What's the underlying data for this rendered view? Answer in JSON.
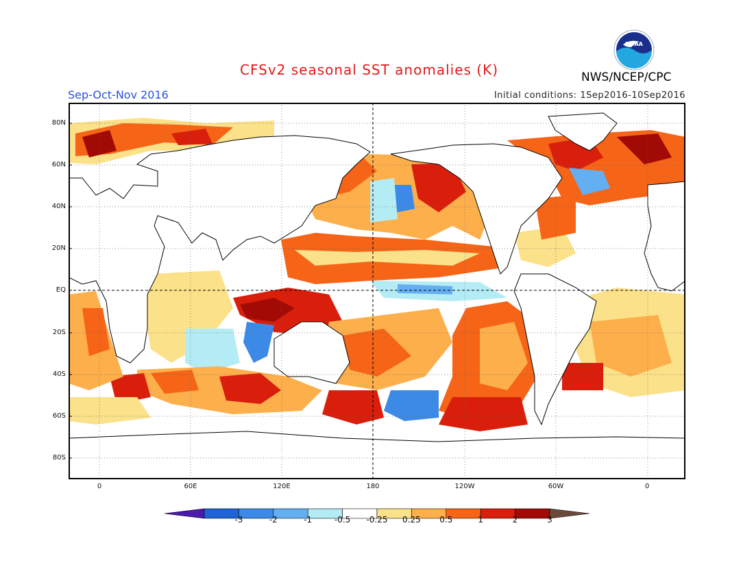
{
  "header": {
    "title": "CFSv2 seasonal SST anomalies (K)",
    "period": "Sep-Oct-Nov 2016",
    "initial_conditions": "Initial conditions: 1Sep2016-10Sep2016",
    "agency": "NWS/NCEP/CPC",
    "logo_text": "NOAA"
  },
  "map": {
    "projection": "cylindrical-equidistant",
    "lat_range": [
      -90,
      90
    ],
    "lon_range": [
      -20,
      380
    ],
    "lat_labels": [
      "80N",
      "60N",
      "40N",
      "20N",
      "EQ",
      "20S",
      "40S",
      "60S",
      "80S"
    ],
    "lon_labels": [
      "0",
      "60E",
      "120E",
      "180",
      "120W",
      "60W",
      "0"
    ],
    "reference_lines": [
      "equator",
      "dateline"
    ]
  },
  "legend": {
    "tick_labels": [
      "-3",
      "-2",
      "-1",
      "-0.5",
      "-0.25",
      "0.25",
      "0.5",
      "1",
      "2",
      "3"
    ],
    "colors": [
      "#4b1bb0",
      "#1f64d4",
      "#3c8ae6",
      "#64aef2",
      "#b4ecf5",
      "#ffffff",
      "#fbe189",
      "#fdaf4c",
      "#f56417",
      "#d91f0c",
      "#a20b05",
      "#6b4a3c"
    ]
  },
  "colors": {
    "title": "#e0191b",
    "period": "#2850e0",
    "land": "#ffffff",
    "coast": "#000000"
  }
}
